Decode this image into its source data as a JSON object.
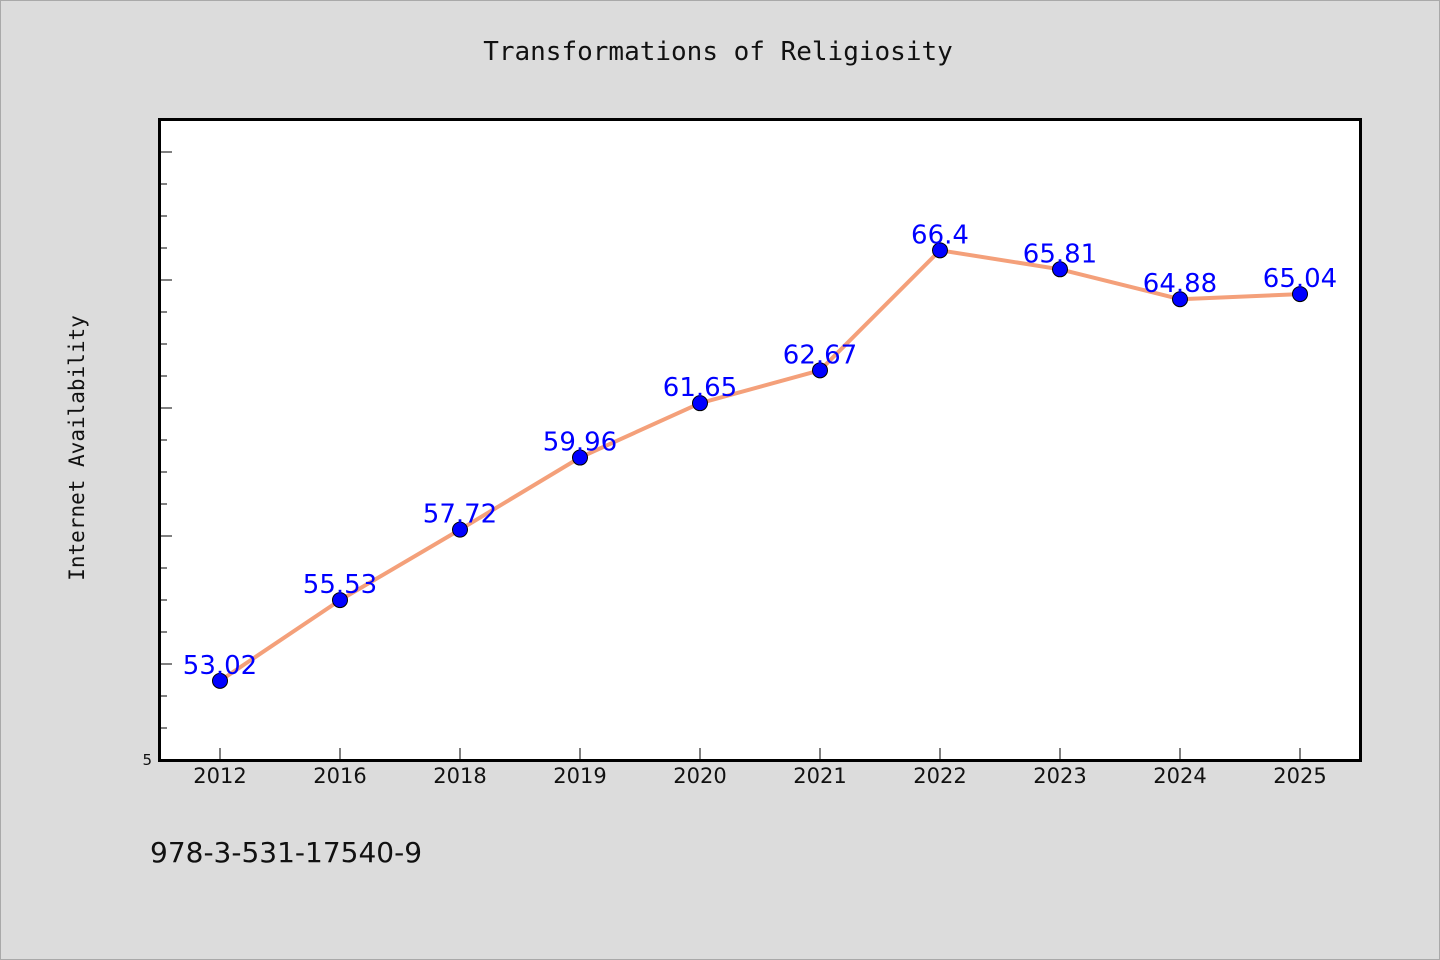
{
  "footer_text": "978-3-531-17540-9",
  "colors": {
    "background": "#dcdcdc",
    "plot_background": "#ffffff",
    "line": "#f4a07a",
    "marker": "#0000ff",
    "data_label": "#0000ff"
  },
  "chart_data": {
    "type": "line",
    "title": "Transformations of Religiosity",
    "xlabel": "",
    "ylabel": "Internet Availability",
    "categories": [
      "2012",
      "2016",
      "2018",
      "2019",
      "2020",
      "2021",
      "2022",
      "2023",
      "2024",
      "2025"
    ],
    "series": [
      {
        "values": [
          53.02,
          55.53,
          57.72,
          59.96,
          61.65,
          62.67,
          66.4,
          65.81,
          64.88,
          65.04
        ]
      }
    ],
    "data_labels": [
      "53.02",
      "55.53",
      "57.72",
      "59.96",
      "61.65",
      "62.67",
      "66.4",
      "65.81",
      "64.88",
      "65.04"
    ],
    "y_tick_labels": [
      "5"
    ],
    "ylim": [
      50.56,
      70.45
    ],
    "grid": false,
    "legend": "none"
  }
}
